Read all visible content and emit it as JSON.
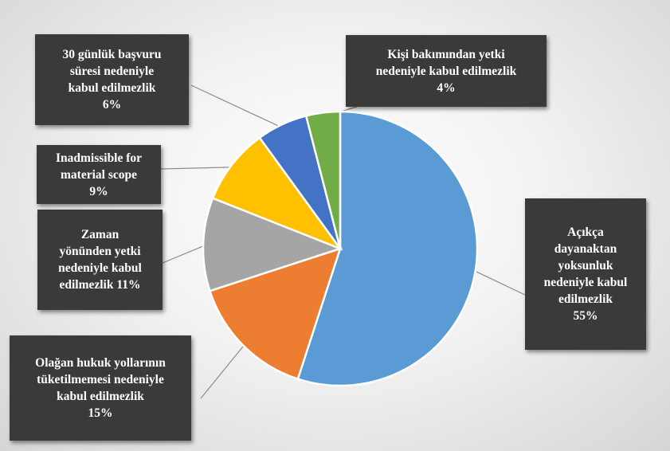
{
  "chart_data": {
    "type": "pie",
    "start_angle_deg": 0,
    "direction": "clockwise",
    "slices": [
      {
        "label_lines": [
          "Açıkça",
          "dayanaktan",
          "yoksunluk",
          "nedeniyle kabul",
          "edilmezlik"
        ],
        "percent_label": "55%",
        "value": 55,
        "color": "#5b9bd5"
      },
      {
        "label_lines": [
          "Olağan hukuk yollarının",
          "tüketilmemesi nedeniyle",
          "kabul edilmezlik"
        ],
        "percent_label": "15%",
        "value": 15,
        "color": "#ed7d31"
      },
      {
        "label_lines": [
          "Zaman",
          "yönünden yetki",
          "nedeniyle kabul",
          "edilmezlik 11%"
        ],
        "percent_label": "",
        "value": 11,
        "color": "#a5a5a5"
      },
      {
        "label_lines": [
          "Inadmissible for",
          "material scope"
        ],
        "percent_label": "9%",
        "value": 9,
        "color": "#ffc000"
      },
      {
        "label_lines": [
          "30 günlük başvuru",
          "süresi nedeniyle",
          "kabul edilmezlik"
        ],
        "percent_label": "6%",
        "value": 6,
        "color": "#4472c4"
      },
      {
        "label_lines": [
          "Kişi bakımından yetki",
          "nedeniyle kabul edilmezlik"
        ],
        "percent_label": "4%",
        "value": 4,
        "color": "#70ad47"
      }
    ],
    "legend": "none",
    "data_labels": "callout boxes with leader lines"
  }
}
